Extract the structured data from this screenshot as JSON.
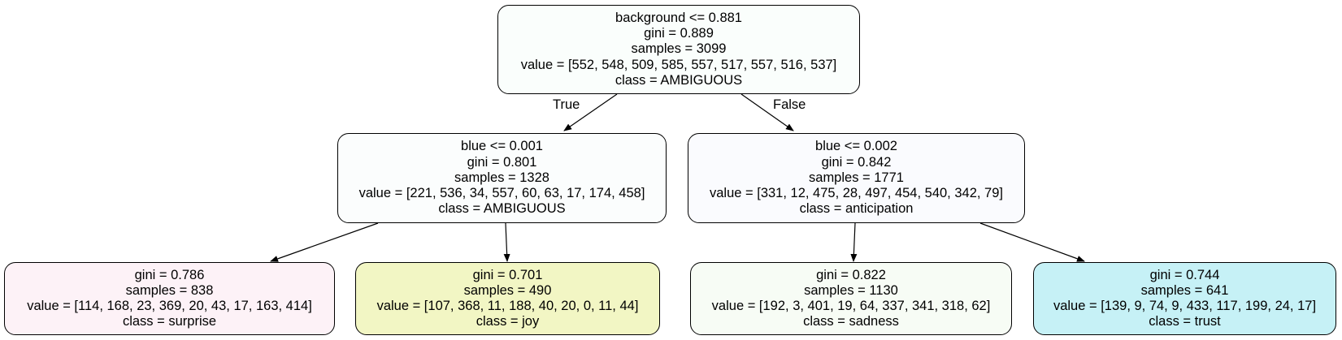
{
  "tree": {
    "root": {
      "condition": "background <= 0.881",
      "gini": "gini = 0.889",
      "samples": "samples = 3099",
      "value": "value = [552, 548, 509, 585, 557, 517, 557, 516, 537]",
      "class": "class = AMBIGUOUS",
      "fill": "#fafefc"
    },
    "left": {
      "condition": "blue <= 0.001",
      "gini": "gini = 0.801",
      "samples": "samples = 1328",
      "value": "value = [221, 536, 34, 557, 60, 63, 17, 174, 458]",
      "class": "class = AMBIGUOUS",
      "fill": "#fbfdfd"
    },
    "right": {
      "condition": "blue <= 0.002",
      "gini": "gini = 0.842",
      "samples": "samples = 1771",
      "value": "value = [331, 12, 475, 28, 497, 454, 540, 342, 79]",
      "class": "class = anticipation",
      "fill": "#fafbfe"
    },
    "leaf_ll": {
      "gini": "gini = 0.786",
      "samples": "samples = 838",
      "value": "value = [114, 168, 23, 369, 20, 43, 17, 163, 414]",
      "class": "class = surprise",
      "fill": "#fdf2f7"
    },
    "leaf_lr": {
      "gini": "gini = 0.701",
      "samples": "samples = 490",
      "value": "value = [107, 368, 11, 188, 40, 20, 0, 11, 44]",
      "class": "class = joy",
      "fill": "#f2f6c4"
    },
    "leaf_rl": {
      "gini": "gini = 0.822",
      "samples": "samples = 1130",
      "value": "value = [192, 3, 401, 19, 64, 337, 341, 318, 62]",
      "class": "class = sadness",
      "fill": "#f7fcf5"
    },
    "leaf_rr": {
      "gini": "gini = 0.744",
      "samples": "samples = 641",
      "value": "value = [139, 9, 74, 9, 433, 117, 199, 24, 17]",
      "class": "class = trust",
      "fill": "#c6f1f6"
    },
    "edge_true": "True",
    "edge_false": "False"
  }
}
